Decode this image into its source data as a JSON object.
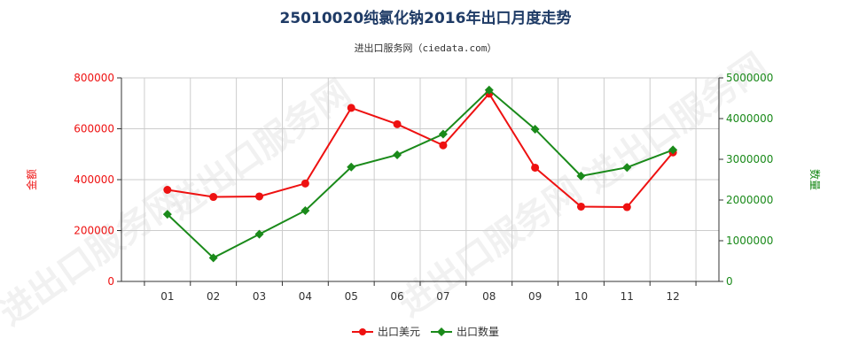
{
  "chart_data": {
    "type": "line",
    "title": "25010020纯氯化钠2016年出口月度走势",
    "subtitle": "进出口服务网（ciedata.com）",
    "categories": [
      "01",
      "02",
      "03",
      "04",
      "05",
      "06",
      "07",
      "08",
      "09",
      "10",
      "11",
      "12"
    ],
    "y_left": {
      "label": "金额",
      "range": [
        0,
        800000
      ],
      "ticks": [
        "0",
        "200000",
        "400000",
        "600000",
        "800000"
      ]
    },
    "y_right": {
      "label": "数量",
      "range": [
        0,
        5000000
      ],
      "ticks": [
        "0",
        "1000000",
        "2000000",
        "3000000",
        "4000000",
        "5000000"
      ]
    },
    "series": [
      {
        "name": "出口美元",
        "axis": "left",
        "color": "#ee1111",
        "marker": "circle",
        "values": [
          360000,
          332000,
          334000,
          385000,
          682000,
          618000,
          535000,
          738000,
          447000,
          294000,
          292000,
          507000
        ]
      },
      {
        "name": "出口数量",
        "axis": "right",
        "color": "#1a8a1a",
        "marker": "diamond",
        "values": [
          1650000,
          580000,
          1160000,
          1740000,
          2810000,
          3110000,
          3620000,
          4700000,
          3740000,
          2590000,
          2800000,
          3230000
        ]
      }
    ],
    "grid": true,
    "legend_position": "bottom",
    "watermark": "进出口服务网"
  }
}
